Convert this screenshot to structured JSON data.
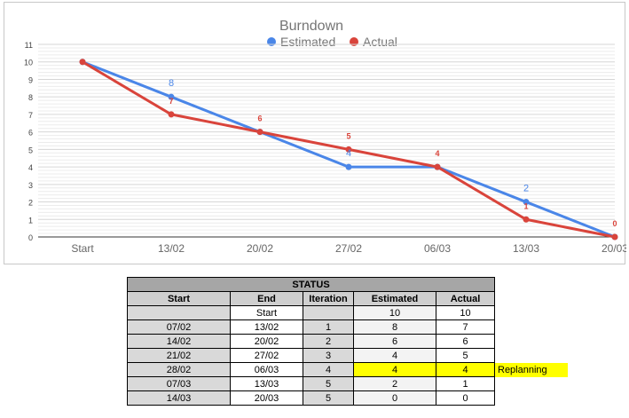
{
  "chart_data": {
    "type": "line",
    "title": "Burndown",
    "categories": [
      "Start",
      "13/02",
      "20/02",
      "27/02",
      "06/03",
      "13/03",
      "20/03"
    ],
    "series": [
      {
        "name": "Estimated",
        "color": "#4a86e8",
        "values": [
          10,
          8,
          6,
          4,
          4,
          2,
          0
        ],
        "labels": [
          "",
          "8",
          "",
          "4",
          "",
          "2",
          ""
        ]
      },
      {
        "name": "Actual",
        "color": "#d9443b",
        "values": [
          10,
          7,
          6,
          5,
          4,
          1,
          0
        ],
        "labels": [
          "",
          "7",
          "6",
          "5",
          "4",
          "1",
          "0"
        ]
      }
    ],
    "ylim": [
      0,
      11
    ],
    "yticks": [
      0,
      1,
      2,
      3,
      4,
      5,
      6,
      7,
      8,
      9,
      10,
      11
    ],
    "grid": true,
    "legend": "top-center"
  },
  "status_table": {
    "title": "STATUS",
    "headers": [
      "Start",
      "End",
      "Iteration",
      "Estimated",
      "Actual"
    ],
    "rows": [
      {
        "start": "",
        "end": "Start",
        "iteration": "",
        "estimated": "10",
        "actual": "10",
        "note": ""
      },
      {
        "start": "07/02",
        "end": "13/02",
        "iteration": "1",
        "estimated": "8",
        "actual": "7",
        "note": ""
      },
      {
        "start": "14/02",
        "end": "20/02",
        "iteration": "2",
        "estimated": "6",
        "actual": "6",
        "note": ""
      },
      {
        "start": "21/02",
        "end": "27/02",
        "iteration": "3",
        "estimated": "4",
        "actual": "5",
        "note": ""
      },
      {
        "start": "28/02",
        "end": "06/03",
        "iteration": "4",
        "estimated": "4",
        "actual": "4",
        "note": "Replanning"
      },
      {
        "start": "07/03",
        "end": "13/03",
        "iteration": "5",
        "estimated": "2",
        "actual": "1",
        "note": ""
      },
      {
        "start": "14/03",
        "end": "20/03",
        "iteration": "5",
        "estimated": "0",
        "actual": "0",
        "note": ""
      }
    ]
  }
}
